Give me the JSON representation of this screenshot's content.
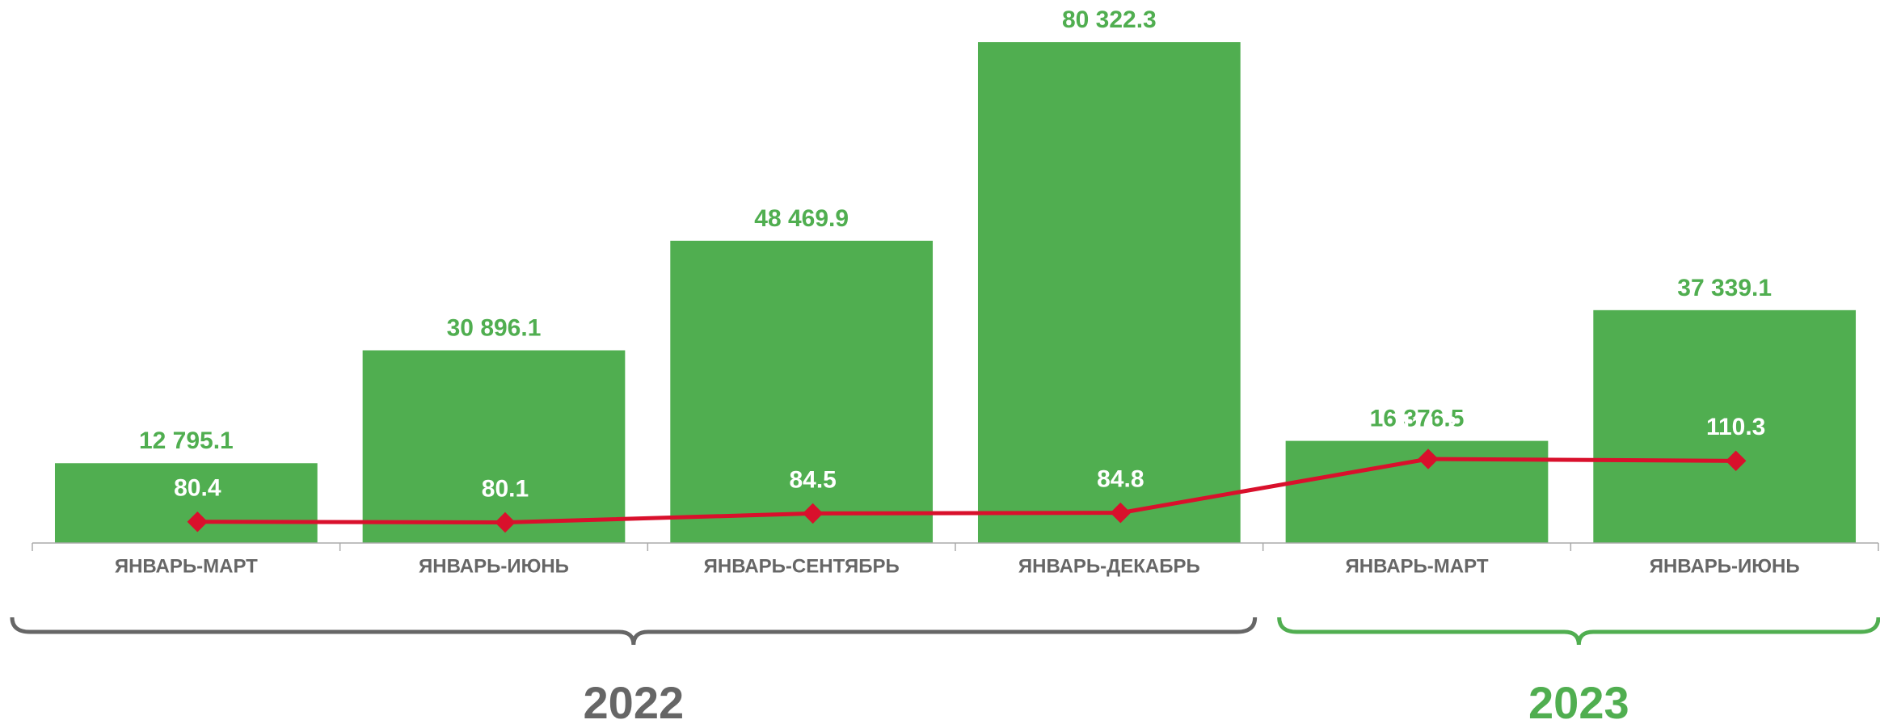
{
  "chart_data": {
    "type": "bar",
    "categories": [
      "ЯНВАРЬ-МАРТ",
      "ЯНВАРЬ-ИЮНЬ",
      "ЯНВАРЬ-СЕНТЯБРЬ",
      "ЯНВАРЬ-ДЕКАБРЬ",
      "ЯНВАРЬ-МАРТ",
      "ЯНВАРЬ-ИЮНЬ"
    ],
    "series": [
      {
        "type": "bar",
        "color": "#50ae50",
        "values": [
          12795.1,
          30896.1,
          48469.9,
          80322.3,
          16376.5,
          37339.1
        ],
        "value_labels": [
          "12 795.1",
          "30 896.1",
          "48 469.9",
          "80 322.3",
          "16 376.5",
          "37 339.1"
        ]
      },
      {
        "type": "line",
        "axis": "y2",
        "color": "#d9102c",
        "values": [
          80.4,
          80.1,
          84.5,
          84.8,
          111.2,
          110.3
        ]
      }
    ],
    "ylim": [
      0,
      85000
    ],
    "y2lim": [
      70,
      330
    ],
    "groups": [
      {
        "label": "2022",
        "count": 4,
        "color": "#666666"
      },
      {
        "label": "2023",
        "count": 2,
        "color": "#50ae50"
      }
    ]
  }
}
